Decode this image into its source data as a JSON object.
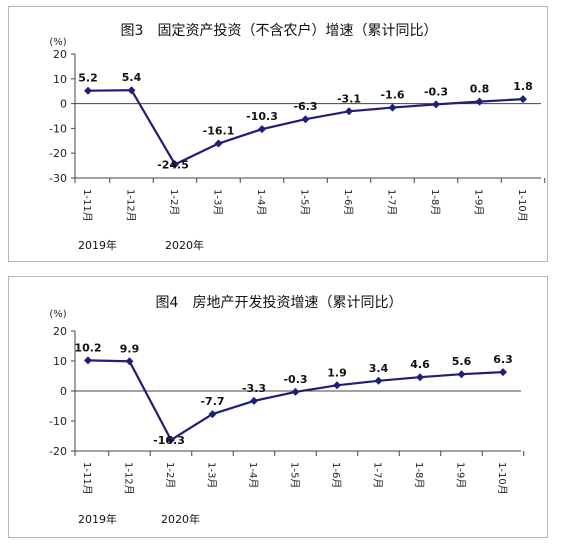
{
  "chart_data": [
    {
      "type": "line",
      "title": "图3　固定资产投资（不含农户）增速（累计同比）",
      "unit_label": "(%)",
      "categories": [
        "1-11月",
        "1-12月",
        "1-2月",
        "1-3月",
        "1-4月",
        "1-5月",
        "1-6月",
        "1-7月",
        "1-8月",
        "1-9月",
        "1-10月"
      ],
      "year_labels": [
        {
          "text": "2019年",
          "index": 0
        },
        {
          "text": "2020年",
          "index": 2
        }
      ],
      "values": [
        5.2,
        5.4,
        -24.5,
        -16.1,
        -10.3,
        -6.3,
        -3.1,
        -1.6,
        -0.3,
        0.8,
        1.8
      ],
      "data_labels": [
        "5.2",
        "5.4",
        "-24.5",
        "-16.1",
        "-10.3",
        "-6.3",
        "-3.1",
        "-1.6",
        "-0.3",
        "0.8",
        "1.8"
      ],
      "ylim": [
        -30,
        20
      ],
      "yticks": [
        20,
        10,
        0,
        -10,
        -20,
        -30
      ],
      "grid": false,
      "line_color": "#1f1f7a"
    },
    {
      "type": "line",
      "title": "图4　房地产开发投资增速（累计同比）",
      "unit_label": "(%)",
      "categories": [
        "1-11月",
        "1-12月",
        "1-2月",
        "1-3月",
        "1-4月",
        "1-5月",
        "1-6月",
        "1-7月",
        "1-8月",
        "1-9月",
        "1-10月"
      ],
      "year_labels": [
        {
          "text": "2019年",
          "index": 0
        },
        {
          "text": "2020年",
          "index": 2
        }
      ],
      "values": [
        10.2,
        9.9,
        -16.3,
        -7.7,
        -3.3,
        -0.3,
        1.9,
        3.4,
        4.6,
        5.6,
        6.3
      ],
      "data_labels": [
        "10.2",
        "9.9",
        "-16.3",
        "-7.7",
        "-3.3",
        "-0.3",
        "1.9",
        "3.4",
        "4.6",
        "5.6",
        "6.3"
      ],
      "ylim": [
        -20,
        20
      ],
      "yticks": [
        20,
        10,
        0,
        -10,
        -20
      ],
      "grid": false,
      "line_color": "#1f1f7a"
    }
  ]
}
